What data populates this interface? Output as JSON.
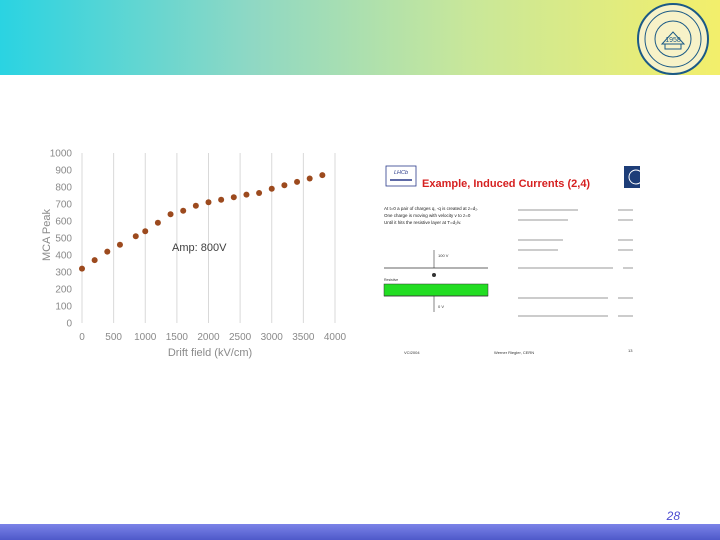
{
  "slide": {
    "page_number": "28",
    "logo_year": "1958"
  },
  "chart_data": {
    "type": "scatter",
    "xlabel": "Drift field (kV/cm)",
    "ylabel": "MCA Peak",
    "annotation": "Amp: 800V",
    "xlim": [
      0,
      4000
    ],
    "ylim": [
      0,
      1000
    ],
    "xticks": [
      0,
      500,
      1000,
      1500,
      2000,
      2500,
      3000,
      3500,
      4000
    ],
    "yticks": [
      0,
      100,
      200,
      300,
      400,
      500,
      600,
      700,
      800,
      900,
      1000
    ],
    "grid": "vertical",
    "marker_color": "#9c4a1e",
    "series": [
      {
        "x": [
          0,
          200,
          400,
          600,
          850,
          1000,
          1200,
          1400,
          1600,
          1800,
          2000,
          2200,
          2400,
          2600,
          2800,
          3000,
          3200,
          3400,
          3600,
          3800
        ],
        "y": [
          320,
          370,
          420,
          460,
          510,
          540,
          590,
          640,
          660,
          690,
          710,
          725,
          740,
          755,
          765,
          790,
          810,
          830,
          850,
          870
        ]
      }
    ]
  },
  "thumbnail": {
    "logo_text": "LHCb",
    "title": "Example, Induced Currents (2,4)",
    "desc_lines": [
      "At t=0 a pair of charges q, -q is created at z=d₂.",
      "One charge is moving with velocity v to z=0",
      "Until it hits the resistive layer at T=d₂/v."
    ],
    "layer_labels": {
      "top": "100 V",
      "bottom": "0 V",
      "resistive": "Resistive"
    },
    "footer_left": "VCI2004",
    "footer_center": "Werner Riegler, CERN",
    "footer_right": "13"
  }
}
